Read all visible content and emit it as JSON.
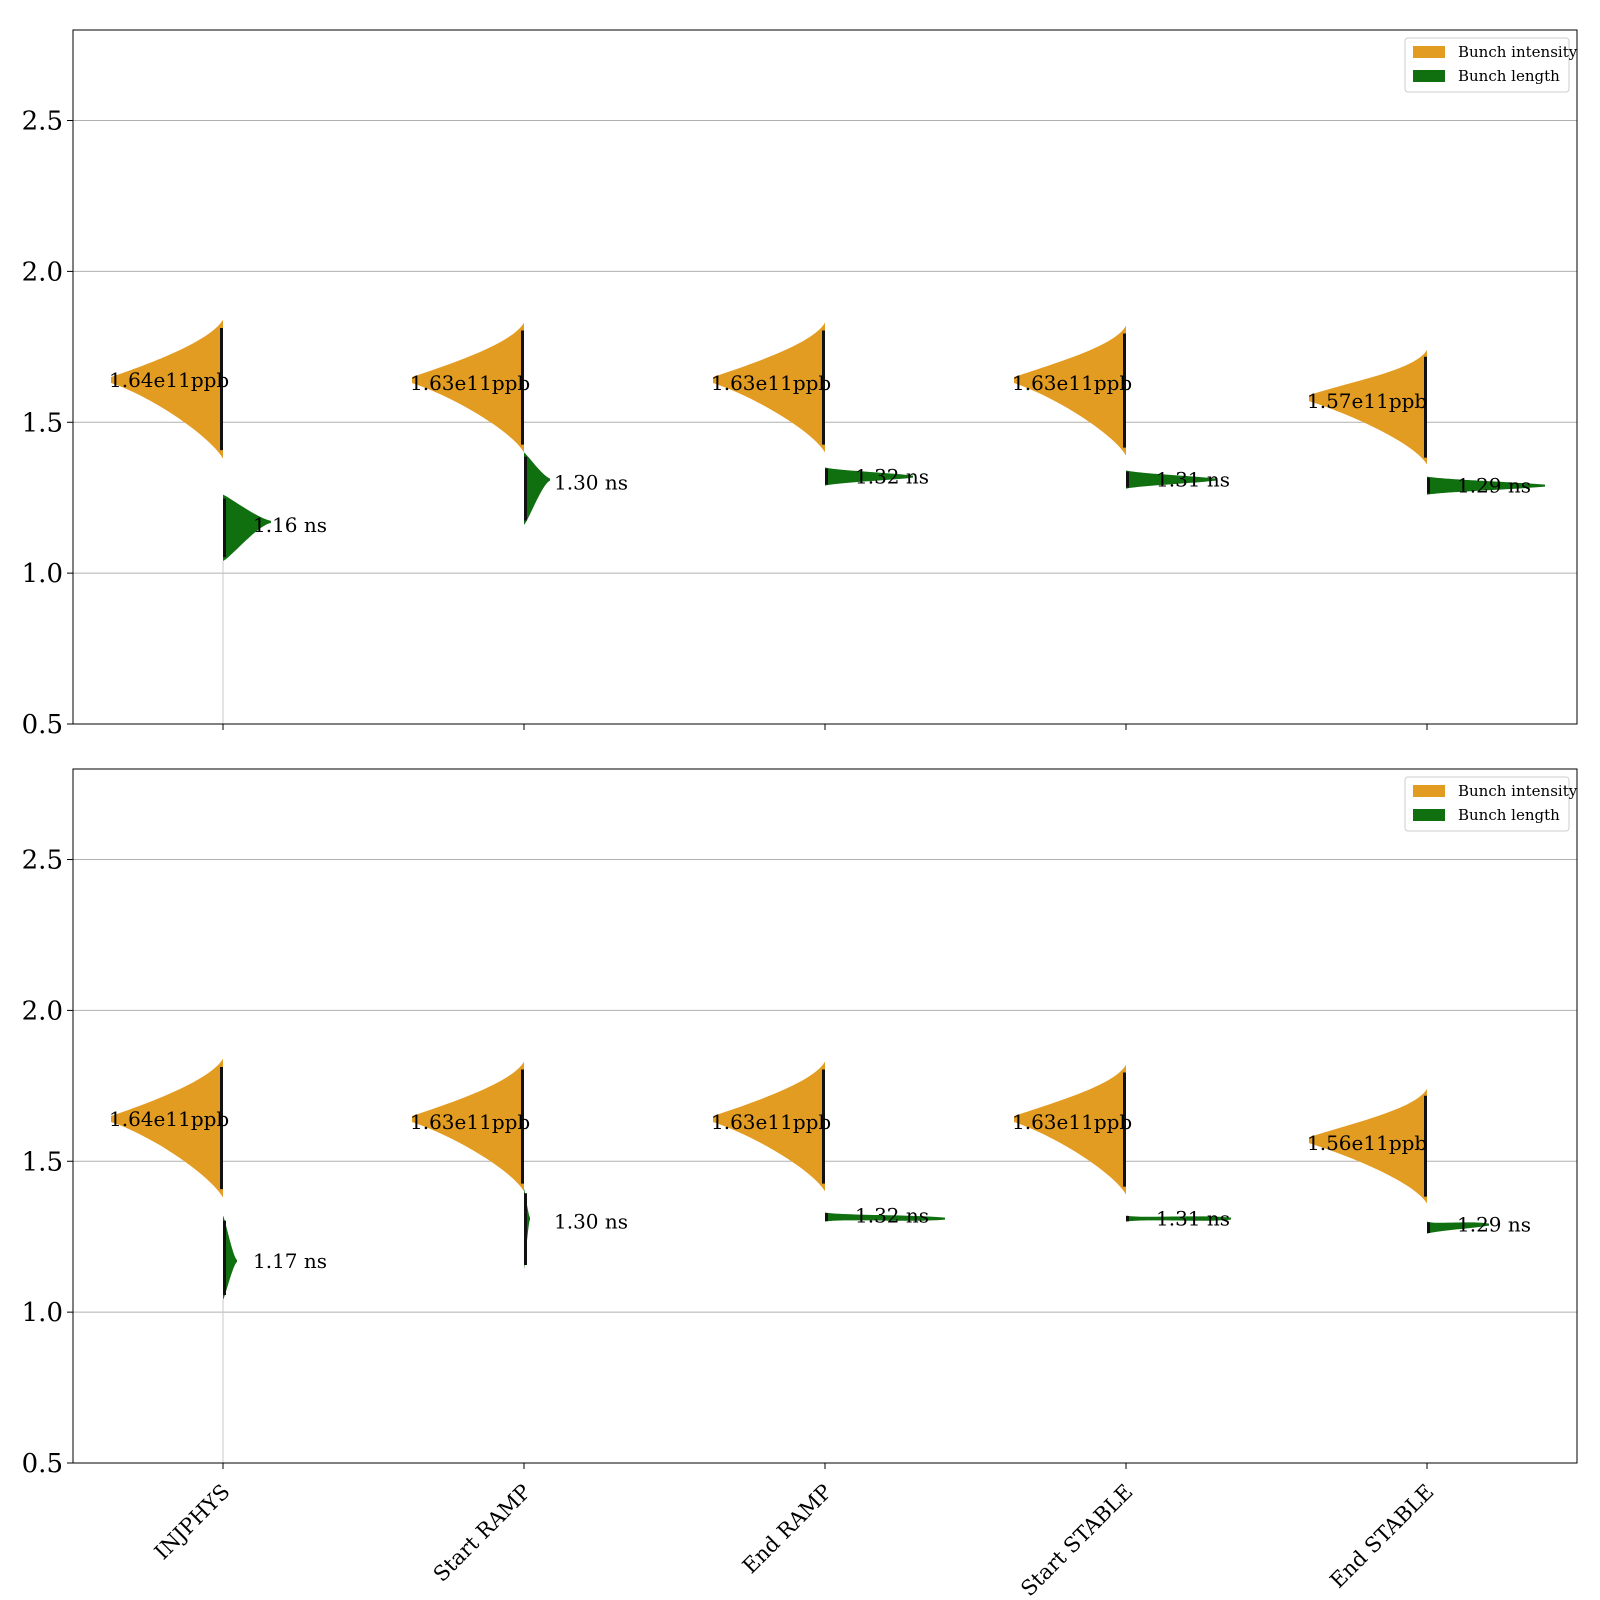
{
  "chart_data": [
    {
      "type": "split-violin",
      "categories": [
        "INJPHYS",
        "Start RAMP",
        "End RAMP",
        "Start STABLE",
        "End STABLE"
      ],
      "ylim": [
        0.5,
        2.8
      ],
      "yticks": [
        0.5,
        1.0,
        1.5,
        2.0,
        2.5
      ],
      "grid": "y",
      "legend_placement": "top-right",
      "show_xtick_labels": false,
      "series": [
        {
          "name": "Bunch intensity",
          "side": "left",
          "color": "#e39c22",
          "unit_label": "e11ppb",
          "medians": [
            1.64,
            1.63,
            1.63,
            1.63,
            1.57
          ],
          "peak_y": [
            1.64,
            1.64,
            1.64,
            1.64,
            1.58
          ],
          "y_ranges": [
            [
              1.38,
              1.84
            ],
            [
              1.4,
              1.83
            ],
            [
              1.4,
              1.83
            ],
            [
              1.39,
              1.82
            ],
            [
              1.36,
              1.74
            ]
          ],
          "labels": [
            "1.64e11ppb",
            "1.63e11ppb",
            "1.63e11ppb",
            "1.63e11ppb",
            "1.57e11ppb"
          ]
        },
        {
          "name": "Bunch length",
          "side": "right",
          "color": "#107010",
          "unit_label": "ns",
          "medians": [
            1.16,
            1.3,
            1.32,
            1.31,
            1.29
          ],
          "peak_y": [
            1.17,
            1.31,
            1.32,
            1.31,
            1.29
          ],
          "y_ranges": [
            [
              1.04,
              1.26
            ],
            [
              1.16,
              1.4
            ],
            [
              1.29,
              1.35
            ],
            [
              1.28,
              1.34
            ],
            [
              1.26,
              1.32
            ]
          ],
          "labels": [
            "1.16 ns",
            "1.30 ns",
            "1.32 ns",
            "1.31 ns",
            "1.29 ns"
          ]
        }
      ]
    },
    {
      "type": "split-violin",
      "categories": [
        "INJPHYS",
        "Start RAMP",
        "End RAMP",
        "Start STABLE",
        "End STABLE"
      ],
      "ylim": [
        0.5,
        2.8
      ],
      "yticks": [
        0.5,
        1.0,
        1.5,
        2.0,
        2.5
      ],
      "grid": "y",
      "legend_placement": "top-right",
      "show_xtick_labels": true,
      "series": [
        {
          "name": "Bunch intensity",
          "side": "left",
          "color": "#e39c22",
          "unit_label": "e11ppb",
          "medians": [
            1.64,
            1.63,
            1.63,
            1.63,
            1.56
          ],
          "peak_y": [
            1.64,
            1.64,
            1.64,
            1.64,
            1.57
          ],
          "y_ranges": [
            [
              1.38,
              1.84
            ],
            [
              1.4,
              1.83
            ],
            [
              1.4,
              1.83
            ],
            [
              1.39,
              1.82
            ],
            [
              1.36,
              1.74
            ]
          ],
          "labels": [
            "1.64e11ppb",
            "1.63e11ppb",
            "1.63e11ppb",
            "1.63e11ppb",
            "1.56e11ppb"
          ]
        },
        {
          "name": "Bunch length",
          "side": "right",
          "color": "#107010",
          "unit_label": "ns",
          "medians": [
            1.17,
            1.3,
            1.32,
            1.31,
            1.29
          ],
          "peak_y": [
            1.17,
            1.31,
            1.31,
            1.31,
            1.29
          ],
          "y_ranges": [
            [
              1.04,
              1.32
            ],
            [
              1.14,
              1.41
            ],
            [
              1.3,
              1.33
            ],
            [
              1.3,
              1.32
            ],
            [
              1.26,
              1.3
            ]
          ],
          "labels": [
            "1.17 ns",
            "1.30 ns",
            "1.32 ns",
            "1.31 ns",
            "1.29 ns"
          ]
        }
      ]
    }
  ]
}
